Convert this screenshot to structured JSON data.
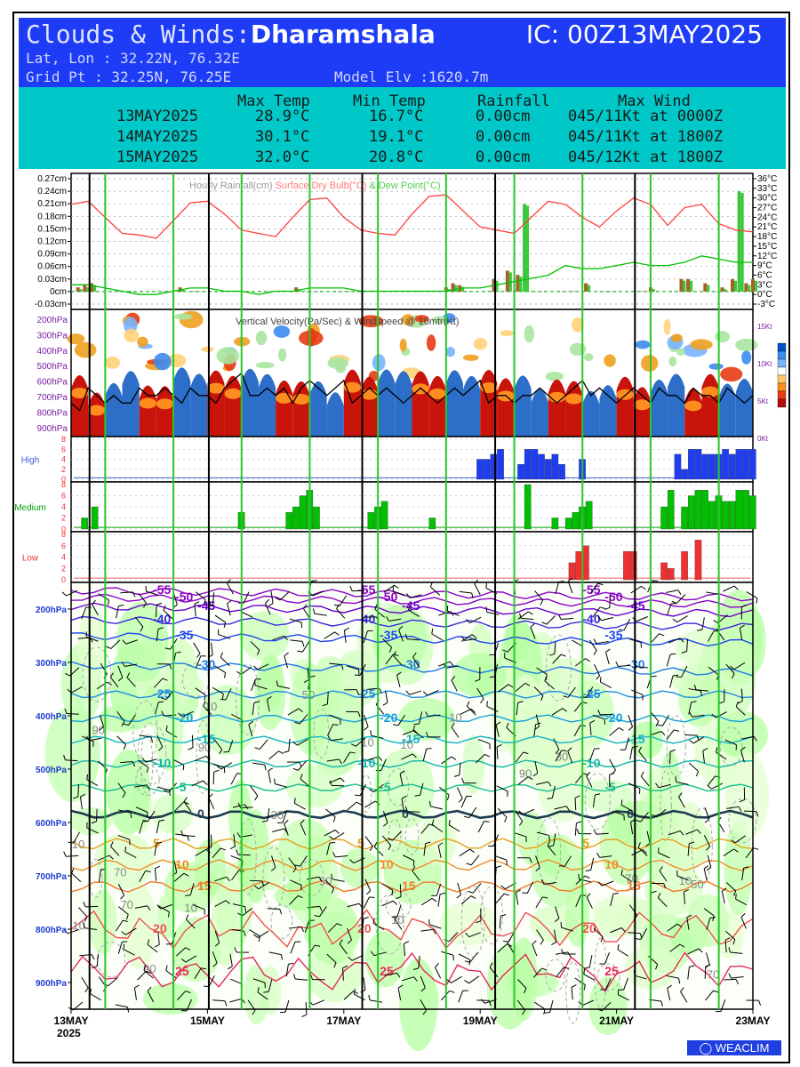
{
  "header": {
    "title_prefix": "Clouds & Winds:",
    "location": "Dharamshala",
    "ic": "IC: 00Z13MAY2025",
    "latlon": "Lat, Lon : 32.22N, 76.32E",
    "gridpt": "Grid Pt  : 32.25N, 76.25E",
    "elev": "Model Elv :1620.7m"
  },
  "summary": {
    "headers": [
      "Max Temp",
      "Min Temp",
      "Rainfall",
      "Max Wind"
    ],
    "rows": [
      {
        "date": "13MAY2025",
        "max": "28.9°C",
        "min": "16.7°C",
        "rain": "0.00cm",
        "wind": "045/11Kt at 0000Z"
      },
      {
        "date": "14MAY2025",
        "max": "30.1°C",
        "min": "19.1°C",
        "rain": "0.00cm",
        "wind": "045/11Kt at 1800Z"
      },
      {
        "date": "15MAY2025",
        "max": "32.0°C",
        "min": "20.8°C",
        "rain": "0.00cm",
        "wind": "045/12Kt at 1800Z"
      }
    ]
  },
  "chart_data": [
    {
      "type": "line",
      "title": "Hourly Rainfall(cm)    Surface Dry Bulb(°C)    & Dew Point(°C)",
      "left_ticks": [
        "0.27cm",
        "0.24cm",
        "0.21cm",
        "0.18cm",
        "0.15cm",
        "0.12cm",
        "0.09cm",
        "0.06cm",
        "0.03cm",
        "0cm",
        "-0.03cm"
      ],
      "right_ticks": [
        "36°C",
        "33°C",
        "30°C",
        "27°C",
        "24°C",
        "21°C",
        "18°C",
        "15°C",
        "12°C",
        "9°C",
        "6°C",
        "3°C",
        "0°C",
        "-3°C"
      ],
      "ylim_rain": [
        -0.03,
        0.27
      ],
      "ylim_temp": [
        -3,
        36
      ],
      "x": [
        0,
        0.25,
        0.5,
        0.75,
        1,
        1.25,
        1.5,
        1.75,
        2,
        2.25,
        2.5,
        2.75,
        3,
        3.25,
        3.5,
        3.75,
        4,
        4.25,
        4.5,
        4.75,
        5,
        5.25,
        5.5,
        5.75,
        6,
        6.25,
        6.5,
        6.75,
        7,
        7.25,
        7.5,
        7.75,
        8,
        8.25,
        8.5,
        8.75,
        9,
        9.25,
        9.5,
        9.75,
        10
      ],
      "series": [
        {
          "name": "Surface Dry Bulb",
          "color": "#ff4040",
          "values": [
            28,
            29,
            24,
            19,
            18.5,
            17.5,
            23,
            28.5,
            29,
            25,
            20,
            19,
            18,
            24,
            29.5,
            30,
            24,
            20,
            19,
            18.5,
            25,
            30.5,
            31,
            26,
            21,
            20,
            19,
            24,
            29,
            28,
            24,
            21,
            26,
            30,
            28,
            21.5,
            27,
            28,
            22,
            20,
            19.5
          ]
        },
        {
          "name": "Dew Point",
          "color": "#00c000",
          "values": [
            3,
            3,
            2,
            1,
            0,
            0,
            1,
            2,
            2,
            1,
            1,
            0,
            1,
            1,
            2,
            2,
            2,
            1,
            1,
            1,
            1,
            1,
            1,
            2,
            2,
            3,
            4,
            5,
            6,
            9,
            8,
            8,
            9,
            10,
            9,
            9,
            10,
            12,
            11,
            10,
            10
          ]
        }
      ],
      "rainfall": [
        {
          "x": 0.1,
          "v": 0.01
        },
        {
          "x": 0.2,
          "v": 0.015
        },
        {
          "x": 0.3,
          "v": 0.02
        },
        {
          "x": 1.6,
          "v": 0.01
        },
        {
          "x": 3.3,
          "v": 0.01
        },
        {
          "x": 5.5,
          "v": 0.01
        },
        {
          "x": 5.6,
          "v": 0.02
        },
        {
          "x": 5.7,
          "v": 0.015
        },
        {
          "x": 6.2,
          "v": 0.03
        },
        {
          "x": 6.4,
          "v": 0.05
        },
        {
          "x": 6.55,
          "v": 0.04
        },
        {
          "x": 6.65,
          "v": 0.21
        },
        {
          "x": 7.55,
          "v": 0.02
        },
        {
          "x": 8.5,
          "v": 0.01
        },
        {
          "x": 8.95,
          "v": 0.03
        },
        {
          "x": 9.05,
          "v": 0.03
        },
        {
          "x": 9.3,
          "v": 0.02
        },
        {
          "x": 9.55,
          "v": 0.01
        },
        {
          "x": 9.7,
          "v": 0.03
        },
        {
          "x": 9.8,
          "v": 0.24
        },
        {
          "x": 9.9,
          "v": 0.02
        },
        {
          "x": 10,
          "v": 0.03
        }
      ]
    },
    {
      "type": "heatmap",
      "title": "Vertical Velocity(Pa/Sec) & Windspeed @ 10mtr(Kt)",
      "y_ticks": [
        "200hPa",
        "300hPa",
        "400hPa",
        "500hPa",
        "600hPa",
        "700hPa",
        "800hPa",
        "900hPa"
      ],
      "right_ticks": [
        "15Kt",
        "10Kt",
        "5Kt",
        "0Kt"
      ],
      "windspeed": [
        4,
        3,
        6,
        5,
        4,
        5,
        4,
        4,
        6,
        5,
        5,
        6,
        5,
        4,
        6,
        5,
        5,
        4,
        6,
        7,
        8,
        5,
        5,
        6,
        5,
        6,
        4,
        6,
        7,
        6,
        5,
        6,
        7,
        4,
        5,
        6,
        5,
        6,
        5,
        4,
        5,
        6,
        5,
        4,
        5,
        6,
        5,
        6,
        7,
        4,
        5,
        5,
        4,
        5,
        5,
        6,
        5,
        4,
        5,
        6,
        7,
        5,
        6,
        5,
        4,
        5,
        6,
        5,
        4,
        6,
        5,
        5,
        4,
        6,
        5,
        5,
        4,
        6,
        5,
        4,
        5
      ],
      "legend_colors": [
        "#0050c8",
        "#3c8cf0",
        "#78b4ff",
        "#ffffff",
        "#ffc864",
        "#ff8c1e",
        "#e63c14",
        "#b40a0a"
      ]
    },
    {
      "type": "bar",
      "title": "High",
      "color": "#1e3cf0",
      "y_ticks": [
        "8",
        "6",
        "4",
        "2",
        "0"
      ],
      "ylim": [
        0,
        8
      ],
      "bars": [
        {
          "x": 6.0,
          "v": 4
        },
        {
          "x": 6.1,
          "v": 4
        },
        {
          "x": 6.2,
          "v": 5
        },
        {
          "x": 6.3,
          "v": 6
        },
        {
          "x": 6.6,
          "v": 3
        },
        {
          "x": 6.7,
          "v": 6
        },
        {
          "x": 6.8,
          "v": 6
        },
        {
          "x": 6.9,
          "v": 5
        },
        {
          "x": 7.0,
          "v": 4
        },
        {
          "x": 7.1,
          "v": 5
        },
        {
          "x": 7.2,
          "v": 3
        },
        {
          "x": 7.5,
          "v": 4
        },
        {
          "x": 8.9,
          "v": 5
        },
        {
          "x": 9.0,
          "v": 2
        },
        {
          "x": 9.1,
          "v": 6
        },
        {
          "x": 9.2,
          "v": 6
        },
        {
          "x": 9.3,
          "v": 5
        },
        {
          "x": 9.4,
          "v": 5
        },
        {
          "x": 9.5,
          "v": 5
        },
        {
          "x": 9.6,
          "v": 6
        },
        {
          "x": 9.7,
          "v": 5
        },
        {
          "x": 9.8,
          "v": 6
        },
        {
          "x": 9.9,
          "v": 6
        },
        {
          "x": 10.0,
          "v": 6
        }
      ]
    },
    {
      "type": "bar",
      "title": "Medium",
      "color": "#00c000",
      "y_ticks": [
        "8",
        "6",
        "4",
        "2",
        "0"
      ],
      "ylim": [
        0,
        8
      ],
      "bars": [
        {
          "x": 0.2,
          "v": 2
        },
        {
          "x": 0.35,
          "v": 4
        },
        {
          "x": 2.5,
          "v": 3
        },
        {
          "x": 3.2,
          "v": 3
        },
        {
          "x": 3.3,
          "v": 4
        },
        {
          "x": 3.4,
          "v": 6
        },
        {
          "x": 3.5,
          "v": 7
        },
        {
          "x": 3.6,
          "v": 4
        },
        {
          "x": 4.4,
          "v": 3
        },
        {
          "x": 4.5,
          "v": 4
        },
        {
          "x": 4.6,
          "v": 5
        },
        {
          "x": 5.3,
          "v": 2
        },
        {
          "x": 6.7,
          "v": 8
        },
        {
          "x": 7.1,
          "v": 2
        },
        {
          "x": 7.3,
          "v": 2
        },
        {
          "x": 7.4,
          "v": 3
        },
        {
          "x": 7.5,
          "v": 4
        },
        {
          "x": 7.6,
          "v": 5
        },
        {
          "x": 8.7,
          "v": 4
        },
        {
          "x": 8.8,
          "v": 7
        },
        {
          "x": 9.0,
          "v": 4
        },
        {
          "x": 9.1,
          "v": 6
        },
        {
          "x": 9.2,
          "v": 7
        },
        {
          "x": 9.3,
          "v": 7
        },
        {
          "x": 9.4,
          "v": 5
        },
        {
          "x": 9.5,
          "v": 6
        },
        {
          "x": 9.6,
          "v": 5
        },
        {
          "x": 9.7,
          "v": 5
        },
        {
          "x": 9.8,
          "v": 7
        },
        {
          "x": 9.9,
          "v": 7
        },
        {
          "x": 10.0,
          "v": 6
        }
      ]
    },
    {
      "type": "bar",
      "title": "Low",
      "color": "#f03030",
      "y_ticks": [
        "8",
        "6",
        "4",
        "2",
        "0"
      ],
      "ylim": [
        0,
        8
      ],
      "bars": [
        {
          "x": 7.35,
          "v": 3
        },
        {
          "x": 7.45,
          "v": 5
        },
        {
          "x": 7.55,
          "v": 6
        },
        {
          "x": 8.15,
          "v": 5
        },
        {
          "x": 8.25,
          "v": 5
        },
        {
          "x": 8.7,
          "v": 3
        },
        {
          "x": 8.8,
          "v": 2
        },
        {
          "x": 9.0,
          "v": 5
        },
        {
          "x": 9.2,
          "v": 7
        }
      ]
    },
    {
      "type": "heatmap",
      "title": "",
      "y_ticks": [
        "200hPa",
        "300hPa",
        "400hPa",
        "500hPa",
        "600hPa",
        "700hPa",
        "800hPa",
        "900hPa"
      ],
      "ylim": [
        950,
        150
      ],
      "x_ticks": [
        "13MAY",
        "15MAY",
        "17MAY",
        "19MAY",
        "21MAY",
        "23MAY"
      ],
      "x_tick_year": "2025",
      "isotherms": [
        {
          "label": "-55",
          "p": 165,
          "color": "#8c00c8"
        },
        {
          "label": "-50",
          "p": 178,
          "color": "#8c00c8"
        },
        {
          "label": "-45",
          "p": 195,
          "color": "#6a00d0"
        },
        {
          "label": "-40",
          "p": 220,
          "color": "#3c28e0"
        },
        {
          "label": "-35",
          "p": 250,
          "color": "#1e46f0"
        },
        {
          "label": "-30",
          "p": 305,
          "color": "#1e78e6"
        },
        {
          "label": "-25",
          "p": 360,
          "color": "#1e8ce6"
        },
        {
          "label": "-20",
          "p": 405,
          "color": "#14a0dc"
        },
        {
          "label": "-15",
          "p": 445,
          "color": "#14b4c8"
        },
        {
          "label": "-10",
          "p": 490,
          "color": "#14b4aa"
        },
        {
          "label": "-5",
          "p": 535,
          "color": "#14be8c"
        },
        {
          "label": "0",
          "p": 585,
          "color": "#1e3c50"
        },
        {
          "label": "5",
          "p": 640,
          "color": "#e6a01e"
        },
        {
          "label": "10",
          "p": 680,
          "color": "#f08c28"
        },
        {
          "label": "15",
          "p": 720,
          "color": "#f07828"
        },
        {
          "label": "20",
          "p": 800,
          "color": "#f05050"
        },
        {
          "label": "25",
          "p": 880,
          "color": "#e6285a"
        }
      ],
      "rh_labels": [
        "10",
        "30",
        "50",
        "70",
        "90"
      ]
    }
  ],
  "logo": "WEACLIM"
}
